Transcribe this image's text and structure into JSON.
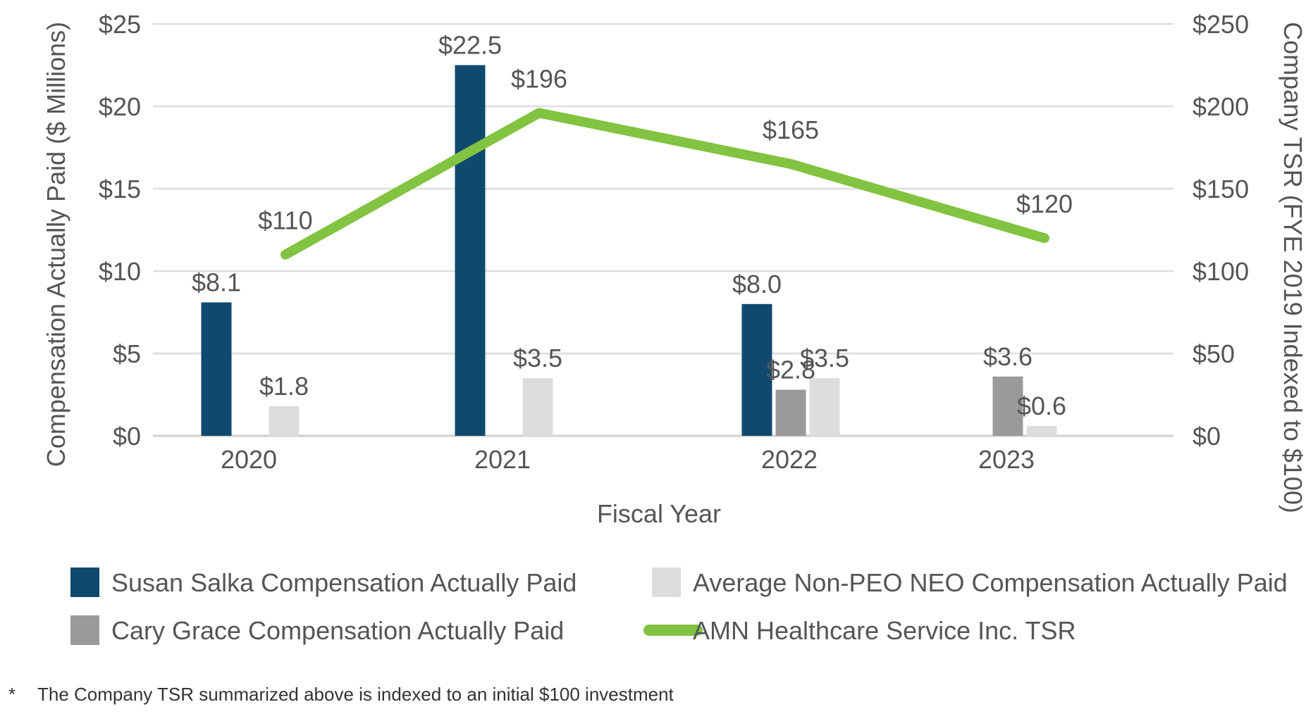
{
  "chart_data": {
    "type": "bar",
    "categories": [
      "2020",
      "2021",
      "2022",
      "2023"
    ],
    "xlabel": "Fiscal Year",
    "ylabel": "Compensation Actually Paid ($ Millions)",
    "ylabel_right": "Company TSR (FYE 2019 Indexed to $100)",
    "ylim": [
      0,
      25
    ],
    "ylim_right": [
      0,
      250
    ],
    "yticks": [
      "$0",
      "$5",
      "$10",
      "$15",
      "$20",
      "$25"
    ],
    "yticks_right": [
      "$0",
      "$50",
      "$100",
      "$150",
      "$200",
      "$250"
    ],
    "grid": true,
    "series": [
      {
        "name": "Susan Salka Compensation Actually Paid",
        "color": "#0f4a6e",
        "values": [
          8.1,
          22.5,
          8.0,
          null
        ],
        "labels": [
          "$8.1",
          "$22.5",
          "$8.0",
          ""
        ]
      },
      {
        "name": "Cary Grace Compensation Actually Paid",
        "color": "#999a9c",
        "values": [
          null,
          null,
          2.8,
          3.6
        ],
        "labels": [
          "",
          "",
          "$2.8",
          "$3.6"
        ]
      },
      {
        "name": "Average Non-PEO NEO Compensation Actually Paid",
        "color": "#dcdddf",
        "values": [
          1.8,
          3.5,
          3.5,
          0.6
        ],
        "labels": [
          "$1.8",
          "$3.5",
          "$3.5",
          "$0.6"
        ]
      },
      {
        "name": "AMN Healthcare Service Inc. TSR",
        "type": "line",
        "axis": "right",
        "color": "#82c341",
        "values": [
          110,
          196,
          165,
          120
        ],
        "labels": [
          "$110",
          "$196",
          "$165",
          "$120"
        ]
      }
    ],
    "legend": {
      "placement": "bottom",
      "order": [
        0,
        2,
        1,
        3
      ]
    },
    "footnote": {
      "marker": "*",
      "text": "The Company TSR summarized above is indexed to an initial $100 investment"
    }
  }
}
